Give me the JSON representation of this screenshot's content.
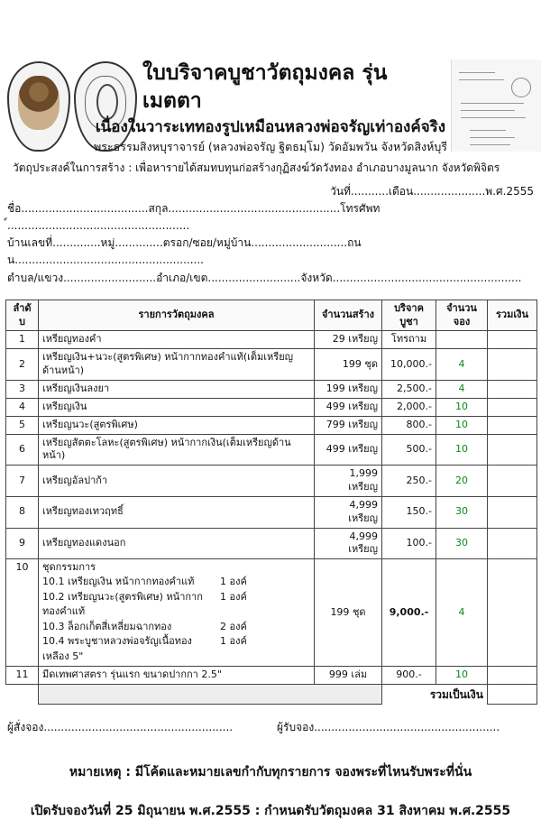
{
  "header": {
    "title": "ใบบริจาคบูชาวัตถุมงคล รุ่นเมตตา",
    "subtitle": "เนื่องในวาระเททองรูปเหมือนหลวงพ่อจรัญเท่าองค์จริง",
    "line3": "พระธรรมสิงหบุราจารย์ (หลวงพ่อจรัญ ฐิตธมฺโม) วัดอัมพวัน จังหวัดสิงห์บุรี",
    "line4": "วัตถุประสงค์ในการสร้าง : เพื่อหารายได้สมทบทุนก่อสร้างกุฏิสงฆ์วัดวังทอง อำเภอบางมูลนาก จังหวัดพิจิตร"
  },
  "form": {
    "date": "วันที่...........เดือน.....................พ.ศ.2555",
    "name": "ชื่อ.....................................สกุล..................................................โทรศัพท์.....................................................",
    "address": "บ้านเลขที่..............หมู่..............ตรอก/ซอย/หมู่บ้าน............................ถนน.......................................................",
    "district": "ตำบล/แขวง...........................อำเภอ/เขต...........................จังหวัด......................................................."
  },
  "table": {
    "headers": [
      "ลำดับ",
      "รายการวัตถุมงคล",
      "จำนวนสร้าง",
      "บริจาคบูชา",
      "จำนวนจอง",
      "รวมเงิน"
    ],
    "rows": [
      {
        "no": "1",
        "item": "เหรียญทองคำ",
        "qty": "29",
        "unit": "เหรียญ",
        "price": "โทรถาม",
        "reserve": ""
      },
      {
        "no": "2",
        "item": "เหรียญเงิน+นวะ(สูตรพิเศษ) หน้ากากทองคำแท้(เต็มเหรียญด้านหน้า)",
        "qty": "199",
        "unit": "ชุด",
        "price": "10,000.-",
        "reserve": "4"
      },
      {
        "no": "3",
        "item": "เหรียญเงินลงยา",
        "qty": "199",
        "unit": "เหรียญ",
        "price": "2,500.-",
        "reserve": "4"
      },
      {
        "no": "4",
        "item": "เหรียญเงิน",
        "qty": "499",
        "unit": "เหรียญ",
        "price": "2,000.-",
        "reserve": "10"
      },
      {
        "no": "5",
        "item": "เหรียญนวะ(สูตรพิเศษ)",
        "qty": "799",
        "unit": "เหรียญ",
        "price": "800.-",
        "reserve": "10"
      },
      {
        "no": "6",
        "item": "เหรียญสัตตะโลหะ(สูตรพิเศษ) หน้ากากเงิน(เต็มเหรียญด้านหน้า)",
        "qty": "499",
        "unit": "เหรียญ",
        "price": "500.-",
        "reserve": "10"
      },
      {
        "no": "7",
        "item": "เหรียญอัลปาก้า",
        "qty": "1,999",
        "unit": "เหรียญ",
        "price": "250.-",
        "reserve": "20"
      },
      {
        "no": "8",
        "item": "เหรียญทองเทวฤทธิ์",
        "qty": "4,999",
        "unit": "เหรียญ",
        "price": "150.-",
        "reserve": "30"
      },
      {
        "no": "9",
        "item": "เหรียญทองแดงนอก",
        "qty": "4,999",
        "unit": "เหรียญ",
        "price": "100.-",
        "reserve": "30"
      }
    ],
    "row10": {
      "no": "10",
      "item": "ชุดกรรมการ",
      "qty": "199",
      "unit": "ชุด",
      "price": "9,000.-",
      "reserve": "4",
      "subitems": [
        {
          "name": "10.1 เหรียญเงิน หน้ากากทองคำแท้",
          "count": "1 องค์"
        },
        {
          "name": "10.2 เหรียญนวะ(สูตรพิเศษ) หน้ากากทองคำแท้",
          "count": "1 องค์"
        },
        {
          "name": "10.3 ล็อกเก็ตสี่เหลี่ยมฉากทอง",
          "count": "2 องค์"
        },
        {
          "name": "10.4 พระบูชาหลวงพ่อจรัญเนื้อทองเหลือง 5\"",
          "count": "1 องค์"
        }
      ]
    },
    "row11": {
      "no": "11",
      "item": "มีดเทพศาสตรา รุ่นแรก ขนาดปากกา 2.5\"",
      "qty": "999",
      "unit": "เล่ม",
      "price": "900.-",
      "reserve": "10"
    },
    "total_label": "รวมเป็นเงิน"
  },
  "signatures": {
    "orderer": "ผู้สั่งจอง.......................................................",
    "receiver": "ผู้รับจอง......................................................"
  },
  "notes": {
    "remark": "หมายเหตุ : มีโค้ดและหมายเลขกำกับทุกรายการ จองพระที่ไหนรับพระที่นั่น",
    "dates": "เปิดรับจองวันที่ 25 มิถุนายน พ.ศ.2555 : กำหนดรับวัตถุมงคล 31 สิงหาคม พ.ศ.2555"
  },
  "colors": {
    "reserve_text": "#0a8a1a"
  }
}
